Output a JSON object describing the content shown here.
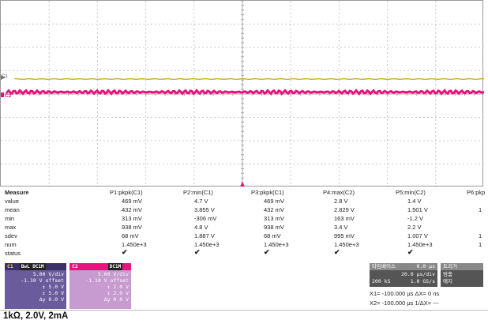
{
  "scope": {
    "c1_marker": "C1",
    "c2_marker": "C2",
    "colors": {
      "c1": "#c7b21a",
      "c2": "#e8137d",
      "grid": "#c8c8c8"
    }
  },
  "measure": {
    "header": [
      "Measure",
      "P1:pkpk(C1)",
      "P2:min(C1)",
      "P3:pkpk(C1)",
      "P4:max(C2)",
      "P5:min(C2)",
      "P6:pkp"
    ],
    "rows": [
      {
        "label": "value",
        "cells": [
          "469 mV",
          "4.7 V",
          "469 mV",
          "2.8 V",
          "1.4 V",
          ""
        ]
      },
      {
        "label": "mean",
        "cells": [
          "432 mV",
          "3.855 V",
          "432 mV",
          "2.829 V",
          "1.501 V",
          "1"
        ]
      },
      {
        "label": "min",
        "cells": [
          "313 mV",
          "-306 mV",
          "313 mV",
          "163 mV",
          "-1.2 V",
          ""
        ]
      },
      {
        "label": "max",
        "cells": [
          "938 mV",
          "4.8 V",
          "938 mV",
          "3.4 V",
          "2.2 V",
          ""
        ]
      },
      {
        "label": "sdev",
        "cells": [
          "68 mV",
          "1.887 V",
          "68 mV",
          "995 mV",
          "1.007 V",
          "1"
        ]
      },
      {
        "label": "num",
        "cells": [
          "1.450e+3",
          "1.450e+3",
          "1.450e+3",
          "1.450e+3",
          "1.450e+3",
          "1"
        ]
      },
      {
        "label": "status",
        "cells": [
          "✔",
          "✔",
          "✔",
          "✔",
          "✔",
          ""
        ]
      }
    ]
  },
  "channels": {
    "c1": {
      "name": "C1",
      "tag": "BwL DC1M",
      "scale": "5.00 V/div",
      "offset": "-1.10 V offset",
      "r1": "↕   5.0 V",
      "r2": "↕   5.0 V",
      "dy": "Δy  0.0 V"
    },
    "c2": {
      "name": "C2",
      "tag": "DC1M",
      "scale": "5.00 V/div",
      "offset": "-1.10 V offset",
      "r1": "↕   2.0 V",
      "r2": "↕   2.0 V",
      "dy": "Δy  0.0 V"
    }
  },
  "timebase": {
    "title": "타임베이스",
    "delay": "0.0 μs",
    "div": "20.0 μs/div",
    "samples": "200 kS",
    "rate": "1.0 GS/s"
  },
  "trigger": {
    "title": "트리거",
    "mode1": "멈춤",
    "mode2": "에지"
  },
  "cursors": {
    "x1": "X1=  -100.000 μs   ΔX=  0 ns",
    "x2": "X2=  -100.000 μs  1/ΔX=   ---"
  },
  "caption": "1kΩ, 2.0V, 2mA"
}
